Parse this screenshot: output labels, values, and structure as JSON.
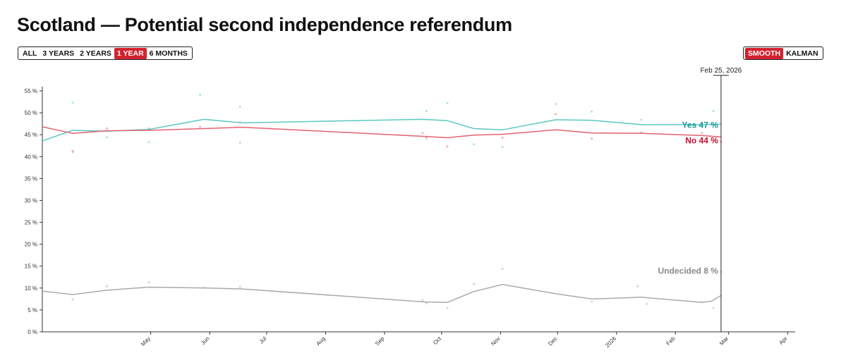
{
  "title": "Scotland — Potential second independence referendum",
  "range_buttons": [
    {
      "label": "ALL",
      "active": false
    },
    {
      "label": "3 YEARS",
      "active": false
    },
    {
      "label": "2 YEARS",
      "active": false
    },
    {
      "label": "1 YEAR",
      "active": true
    },
    {
      "label": "6 MONTHS",
      "active": false
    }
  ],
  "method_buttons": [
    {
      "label": "SMOOTH",
      "active": true
    },
    {
      "label": "KALMAN",
      "active": false
    }
  ],
  "colors": {
    "accent": "#d32230",
    "yes": "#5bc8c3",
    "no": "#e2626f",
    "undecided": "#aaaaaa",
    "yes_label": "#169a93",
    "no_label": "#c8102e",
    "undecided_label": "#8a8a8a"
  },
  "cursor_date": "Feb 25, 2026",
  "chart_data": {
    "type": "line",
    "title": "Scotland — Potential second independence referendum",
    "xlabel": "",
    "ylabel": "",
    "ylim": [
      0,
      55
    ],
    "yticks": [
      0,
      5,
      10,
      15,
      20,
      25,
      30,
      35,
      40,
      45,
      50,
      55
    ],
    "y_tick_labels": [
      "0 %",
      "5 %",
      "10 %",
      "15 %",
      "20 %",
      "25 %",
      "30 %",
      "35 %",
      "40 %",
      "45 %",
      "50 %",
      "55 %"
    ],
    "xlim": [
      "2025-03-05",
      "2026-04-05"
    ],
    "x_ticks": [
      {
        "date": "2025-05-01",
        "label": "May"
      },
      {
        "date": "2025-06-01",
        "label": "Jun"
      },
      {
        "date": "2025-07-01",
        "label": "Jul"
      },
      {
        "date": "2025-08-01",
        "label": "Aug"
      },
      {
        "date": "2025-09-01",
        "label": "Sep"
      },
      {
        "date": "2025-10-01",
        "label": "Oct"
      },
      {
        "date": "2025-11-01",
        "label": "Nov"
      },
      {
        "date": "2025-12-01",
        "label": "Dec"
      },
      {
        "date": "2026-01-01",
        "label": "2026"
      },
      {
        "date": "2026-02-01",
        "label": "Feb"
      },
      {
        "date": "2026-03-01",
        "label": "Mar"
      },
      {
        "date": "2026-04-01",
        "label": "Apr"
      }
    ],
    "series": [
      {
        "name": "Yes",
        "end_label": "Yes",
        "end_value": "47 %",
        "color": "#5bc8c3",
        "line": [
          {
            "x": "2025-03-05",
            "y": 43.6
          },
          {
            "x": "2025-03-21",
            "y": 46.0
          },
          {
            "x": "2025-04-08",
            "y": 45.8
          },
          {
            "x": "2025-04-30",
            "y": 46.2
          },
          {
            "x": "2025-05-29",
            "y": 48.5
          },
          {
            "x": "2025-06-18",
            "y": 47.7
          },
          {
            "x": "2025-09-21",
            "y": 48.5
          },
          {
            "x": "2025-10-04",
            "y": 48.2
          },
          {
            "x": "2025-10-18",
            "y": 46.4
          },
          {
            "x": "2025-11-02",
            "y": 46.1
          },
          {
            "x": "2025-11-30",
            "y": 48.4
          },
          {
            "x": "2025-12-19",
            "y": 48.3
          },
          {
            "x": "2026-01-14",
            "y": 47.3
          },
          {
            "x": "2026-02-15",
            "y": 47.3
          },
          {
            "x": "2026-02-25",
            "y": 47.4
          }
        ],
        "points": [
          {
            "x": "2025-03-21",
            "y": 52.3
          },
          {
            "x": "2025-03-21",
            "y": 41.0
          },
          {
            "x": "2025-04-08",
            "y": 44.4
          },
          {
            "x": "2025-04-30",
            "y": 43.3
          },
          {
            "x": "2025-05-27",
            "y": 54.1
          },
          {
            "x": "2025-06-17",
            "y": 51.4
          },
          {
            "x": "2025-06-17",
            "y": 43.2
          },
          {
            "x": "2025-09-23",
            "y": 50.4
          },
          {
            "x": "2025-10-04",
            "y": 52.2
          },
          {
            "x": "2025-10-18",
            "y": 42.8
          },
          {
            "x": "2025-11-02",
            "y": 42.2
          },
          {
            "x": "2025-11-30",
            "y": 52.0
          },
          {
            "x": "2025-12-19",
            "y": 50.3
          },
          {
            "x": "2026-01-14",
            "y": 48.4
          },
          {
            "x": "2026-02-21",
            "y": 50.4
          }
        ]
      },
      {
        "name": "No",
        "end_label": "No",
        "end_value": "44 %",
        "color": "#e2626f",
        "line": [
          {
            "x": "2025-03-05",
            "y": 46.8
          },
          {
            "x": "2025-03-21",
            "y": 45.3
          },
          {
            "x": "2025-04-08",
            "y": 45.9
          },
          {
            "x": "2025-04-30",
            "y": 46.0
          },
          {
            "x": "2025-05-29",
            "y": 46.4
          },
          {
            "x": "2025-06-18",
            "y": 46.7
          },
          {
            "x": "2025-09-23",
            "y": 44.6
          },
          {
            "x": "2025-10-04",
            "y": 44.3
          },
          {
            "x": "2025-10-18",
            "y": 44.9
          },
          {
            "x": "2025-11-02",
            "y": 45.1
          },
          {
            "x": "2025-11-30",
            "y": 46.1
          },
          {
            "x": "2025-12-19",
            "y": 45.4
          },
          {
            "x": "2026-01-14",
            "y": 45.3
          },
          {
            "x": "2026-02-15",
            "y": 44.8
          },
          {
            "x": "2026-02-25",
            "y": 44.5
          }
        ],
        "points": [
          {
            "x": "2025-03-21",
            "y": 41.3
          },
          {
            "x": "2025-04-08",
            "y": 46.4
          },
          {
            "x": "2025-04-30",
            "y": 46.4
          },
          {
            "x": "2025-05-27",
            "y": 46.8
          },
          {
            "x": "2025-06-17",
            "y": 47.8
          },
          {
            "x": "2025-09-21",
            "y": 45.4
          },
          {
            "x": "2025-09-23",
            "y": 44.2
          },
          {
            "x": "2025-10-04",
            "y": 42.3
          },
          {
            "x": "2025-11-02",
            "y": 44.3
          },
          {
            "x": "2025-11-30",
            "y": 49.7
          },
          {
            "x": "2025-12-19",
            "y": 44.1
          },
          {
            "x": "2026-01-14",
            "y": 45.5
          },
          {
            "x": "2026-02-15",
            "y": 45.4
          },
          {
            "x": "2026-02-25",
            "y": 43.4
          }
        ]
      },
      {
        "name": "Undecided",
        "end_label": "Undecided",
        "end_value": "8 %",
        "color": "#aaaaaa",
        "line": [
          {
            "x": "2025-03-05",
            "y": 9.3
          },
          {
            "x": "2025-03-21",
            "y": 8.5
          },
          {
            "x": "2025-04-08",
            "y": 9.5
          },
          {
            "x": "2025-04-30",
            "y": 10.2
          },
          {
            "x": "2025-05-29",
            "y": 10.0
          },
          {
            "x": "2025-06-18",
            "y": 9.8
          },
          {
            "x": "2025-09-23",
            "y": 6.8
          },
          {
            "x": "2025-10-04",
            "y": 6.7
          },
          {
            "x": "2025-10-18",
            "y": 9.2
          },
          {
            "x": "2025-11-02",
            "y": 10.8
          },
          {
            "x": "2025-11-30",
            "y": 8.7
          },
          {
            "x": "2025-12-19",
            "y": 7.5
          },
          {
            "x": "2026-01-14",
            "y": 7.9
          },
          {
            "x": "2026-02-15",
            "y": 6.7
          },
          {
            "x": "2026-02-20",
            "y": 7.0
          },
          {
            "x": "2026-02-25",
            "y": 8.3
          }
        ],
        "points": [
          {
            "x": "2025-03-21",
            "y": 7.4
          },
          {
            "x": "2025-04-08",
            "y": 10.4
          },
          {
            "x": "2025-04-30",
            "y": 11.3
          },
          {
            "x": "2025-05-29",
            "y": 10.1
          },
          {
            "x": "2025-06-17",
            "y": 10.3
          },
          {
            "x": "2025-09-21",
            "y": 7.2
          },
          {
            "x": "2025-09-23",
            "y": 6.5
          },
          {
            "x": "2025-10-04",
            "y": 5.4
          },
          {
            "x": "2025-10-18",
            "y": 10.9
          },
          {
            "x": "2025-11-02",
            "y": 14.4
          },
          {
            "x": "2025-12-19",
            "y": 6.9
          },
          {
            "x": "2026-01-12",
            "y": 10.4
          },
          {
            "x": "2026-01-17",
            "y": 6.4
          },
          {
            "x": "2026-02-15",
            "y": 6.8
          },
          {
            "x": "2026-02-21",
            "y": 5.4
          },
          {
            "x": "2026-02-25",
            "y": 13.7
          }
        ]
      }
    ]
  }
}
